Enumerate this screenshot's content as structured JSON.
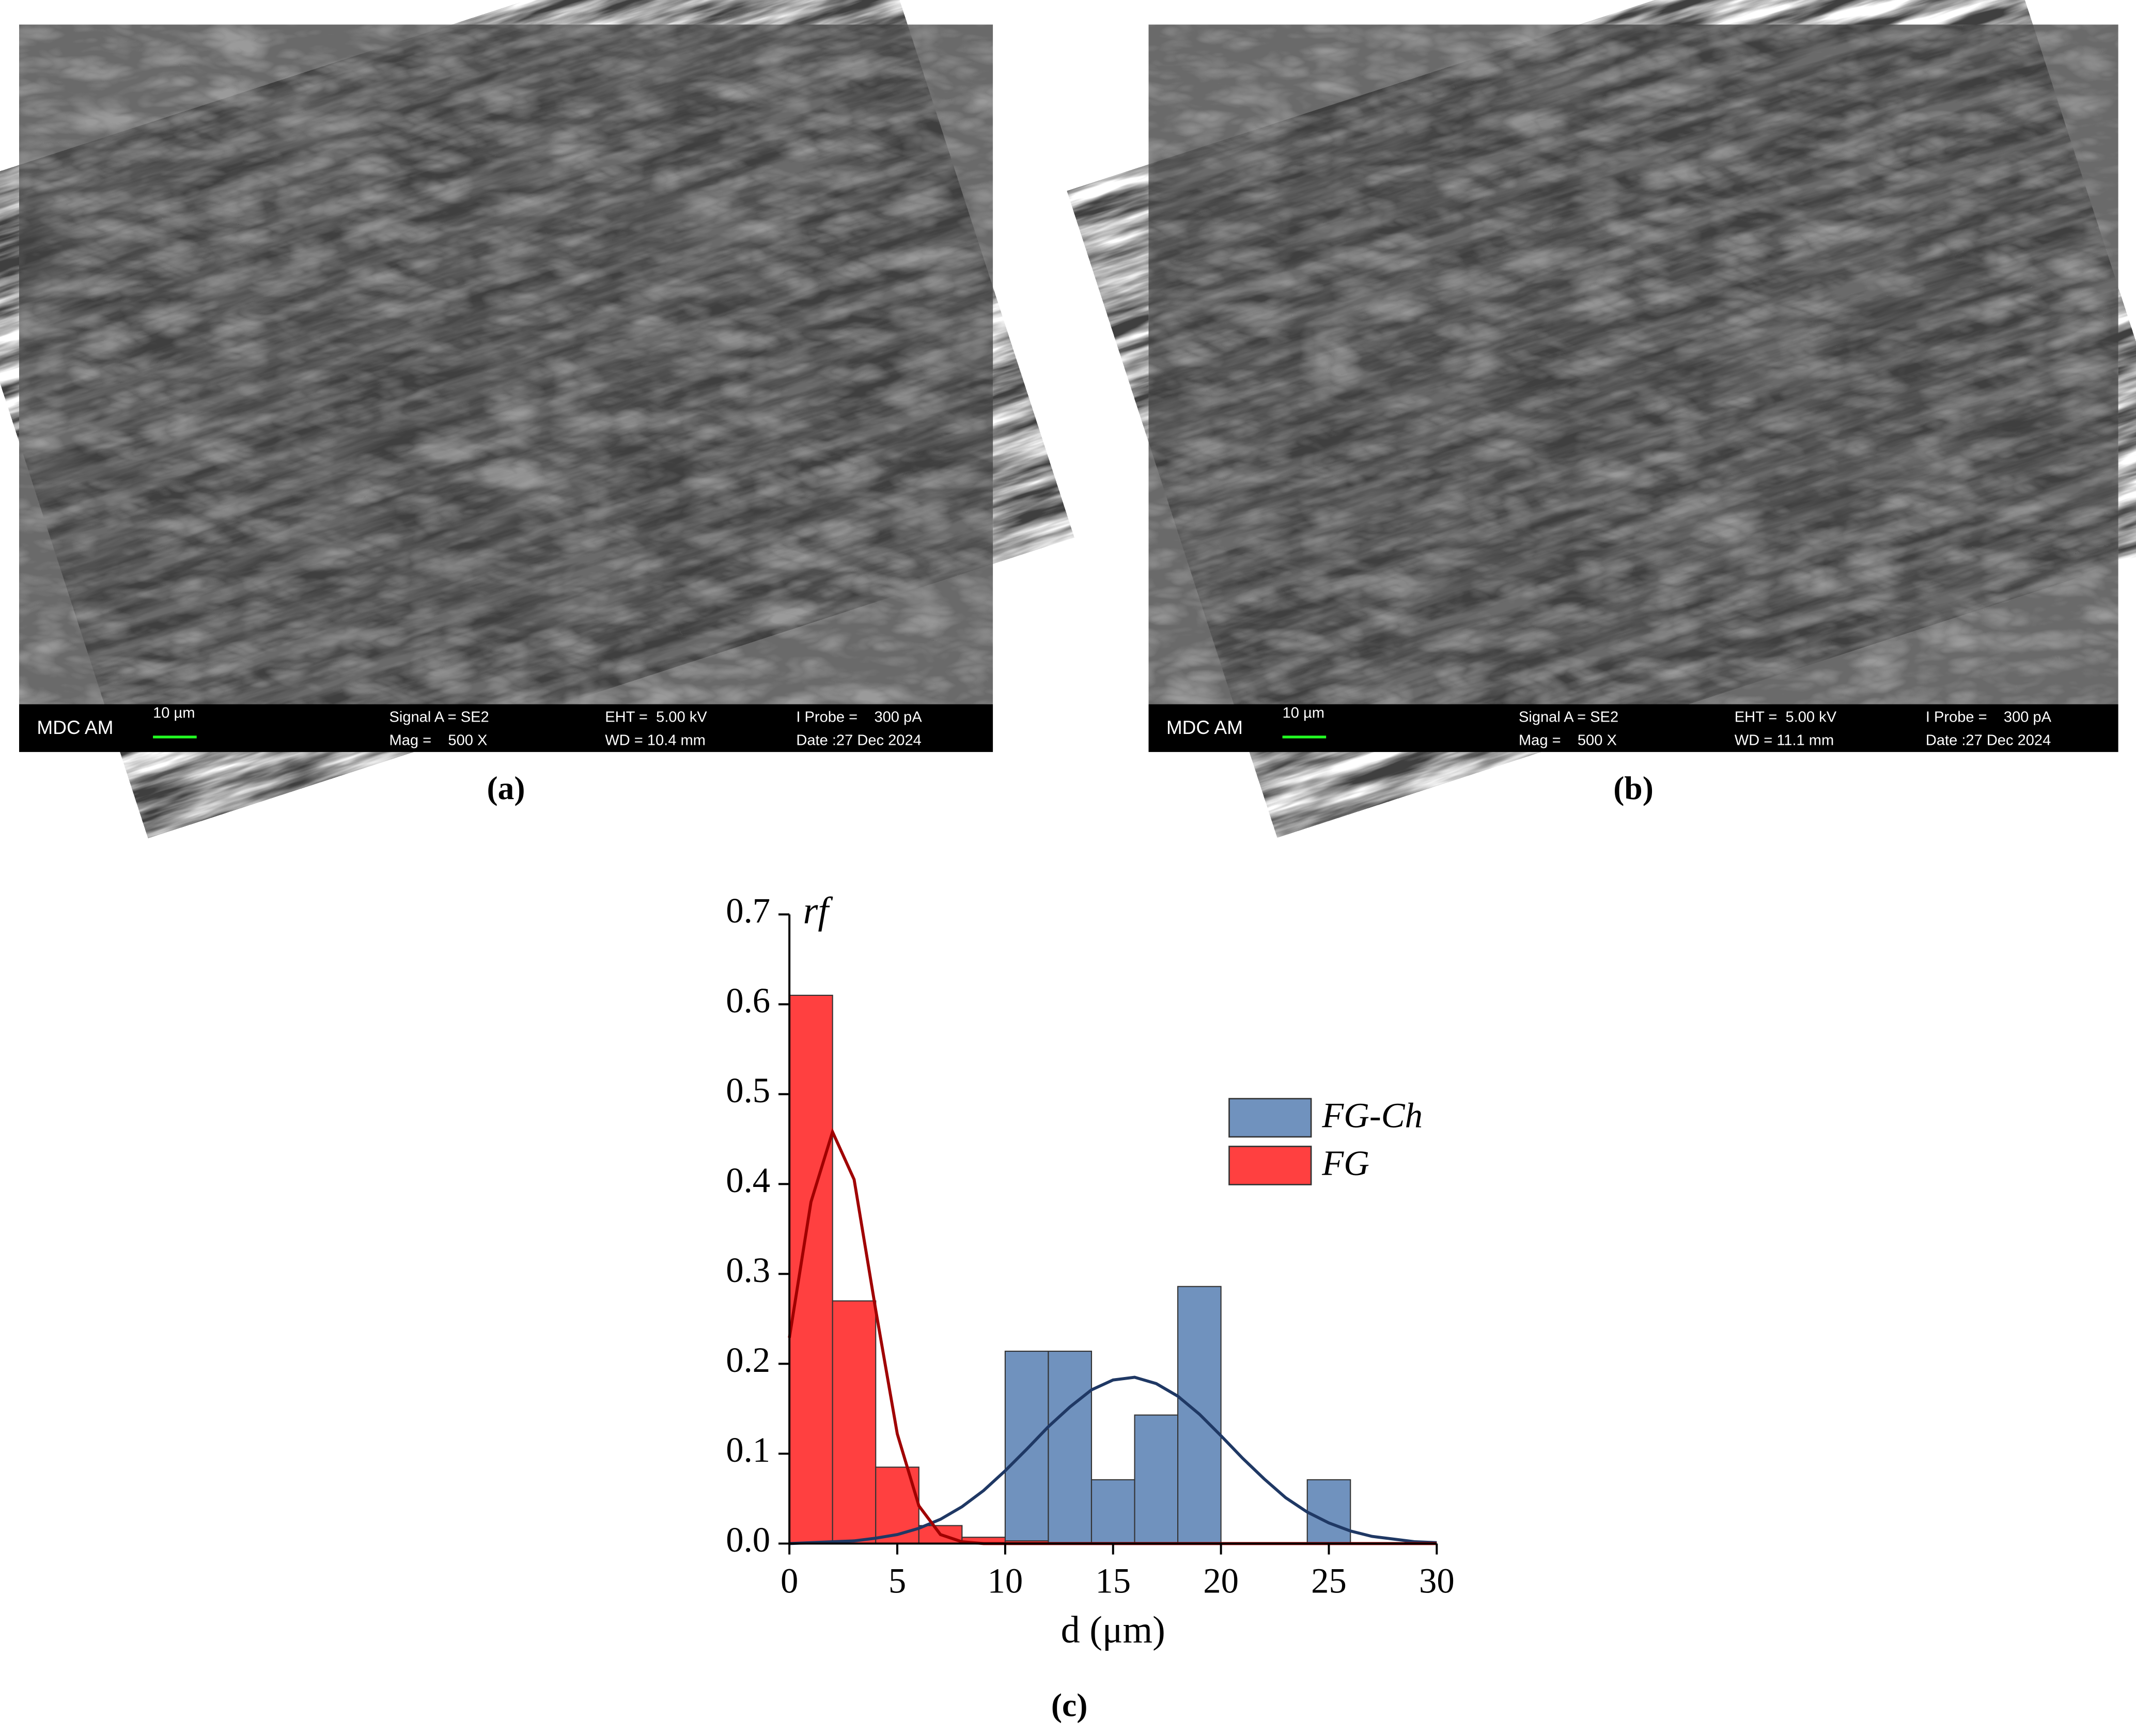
{
  "panels": [
    {
      "caption": "(a)",
      "sem_info": {
        "label": "MDC AM",
        "scale": "10 µm",
        "signal": "Signal A = SE2",
        "mag": "Mag =    500 X",
        "eht": "EHT =  5.00 kV",
        "wd": "WD = 10.4 mm",
        "probe": "I Probe =    300 pA",
        "date": "Date :27 Dec 2024"
      }
    },
    {
      "caption": "(b)",
      "sem_info": {
        "label": "MDC AM",
        "scale": "10 µm",
        "signal": "Signal A = SE2",
        "mag": "Mag =    500 X",
        "eht": "EHT =  5.00 kV",
        "wd": "WD = 11.1 mm",
        "probe": "I Probe =    300 pA",
        "date": "Date :27 Dec 2024"
      }
    }
  ],
  "chart_caption": "(c)",
  "chart_data": {
    "type": "histogram",
    "xlabel": "d (μm)",
    "ylabel": "rf",
    "bins": [
      0,
      2,
      4,
      6,
      8,
      10,
      12,
      14,
      16,
      18,
      20,
      22,
      24,
      26,
      28,
      30
    ],
    "series": [
      {
        "name": "FG-Ch",
        "color": "#7092be",
        "values": [
          0,
          0,
          0,
          0,
          0,
          0.214,
          0.214,
          0.071,
          0.143,
          0.286,
          0,
          0,
          0.071,
          0,
          0
        ]
      },
      {
        "name": "FG",
        "color": "#ff4040",
        "values": [
          0.61,
          0.27,
          0.085,
          0.02,
          0.007,
          0.003,
          0,
          0,
          0,
          0,
          0,
          0,
          0,
          0,
          0
        ]
      }
    ],
    "fit_curves": {
      "type": "line",
      "x": [
        0,
        1,
        2,
        3,
        4,
        5,
        6,
        7,
        8,
        9,
        10,
        11,
        12,
        13,
        14,
        15,
        16,
        17,
        18,
        19,
        20,
        21,
        22,
        23,
        24,
        25,
        26,
        27,
        28,
        29,
        30
      ],
      "series": [
        {
          "color": "#1f3864",
          "values": [
            0,
            0.001,
            0.002,
            0.003,
            0.006,
            0.01,
            0.017,
            0.027,
            0.041,
            0.059,
            0.081,
            0.105,
            0.13,
            0.152,
            0.171,
            0.182,
            0.185,
            0.178,
            0.164,
            0.144,
            0.12,
            0.095,
            0.072,
            0.051,
            0.035,
            0.023,
            0.014,
            0.008,
            0.005,
            0.002,
            0.001
          ]
        },
        {
          "color": "#a00000",
          "values": [
            0.229,
            0.38,
            0.458,
            0.405,
            0.26,
            0.122,
            0.042,
            0.01,
            0.002,
            0,
            0,
            0,
            0,
            0,
            0,
            0,
            0,
            0,
            0,
            0,
            0,
            0,
            0,
            0,
            0,
            0,
            0,
            0,
            0,
            0,
            0
          ]
        }
      ]
    },
    "xlim": [
      0,
      30
    ],
    "xticks": [
      0,
      5,
      10,
      15,
      20,
      25,
      30
    ],
    "ylim": [
      0,
      0.7
    ],
    "yticks": [
      {
        "value": 0,
        "label": "0.0"
      },
      0.1,
      0.2,
      0.3,
      0.4,
      0.5,
      0.6,
      0.7
    ],
    "legend": "right"
  }
}
